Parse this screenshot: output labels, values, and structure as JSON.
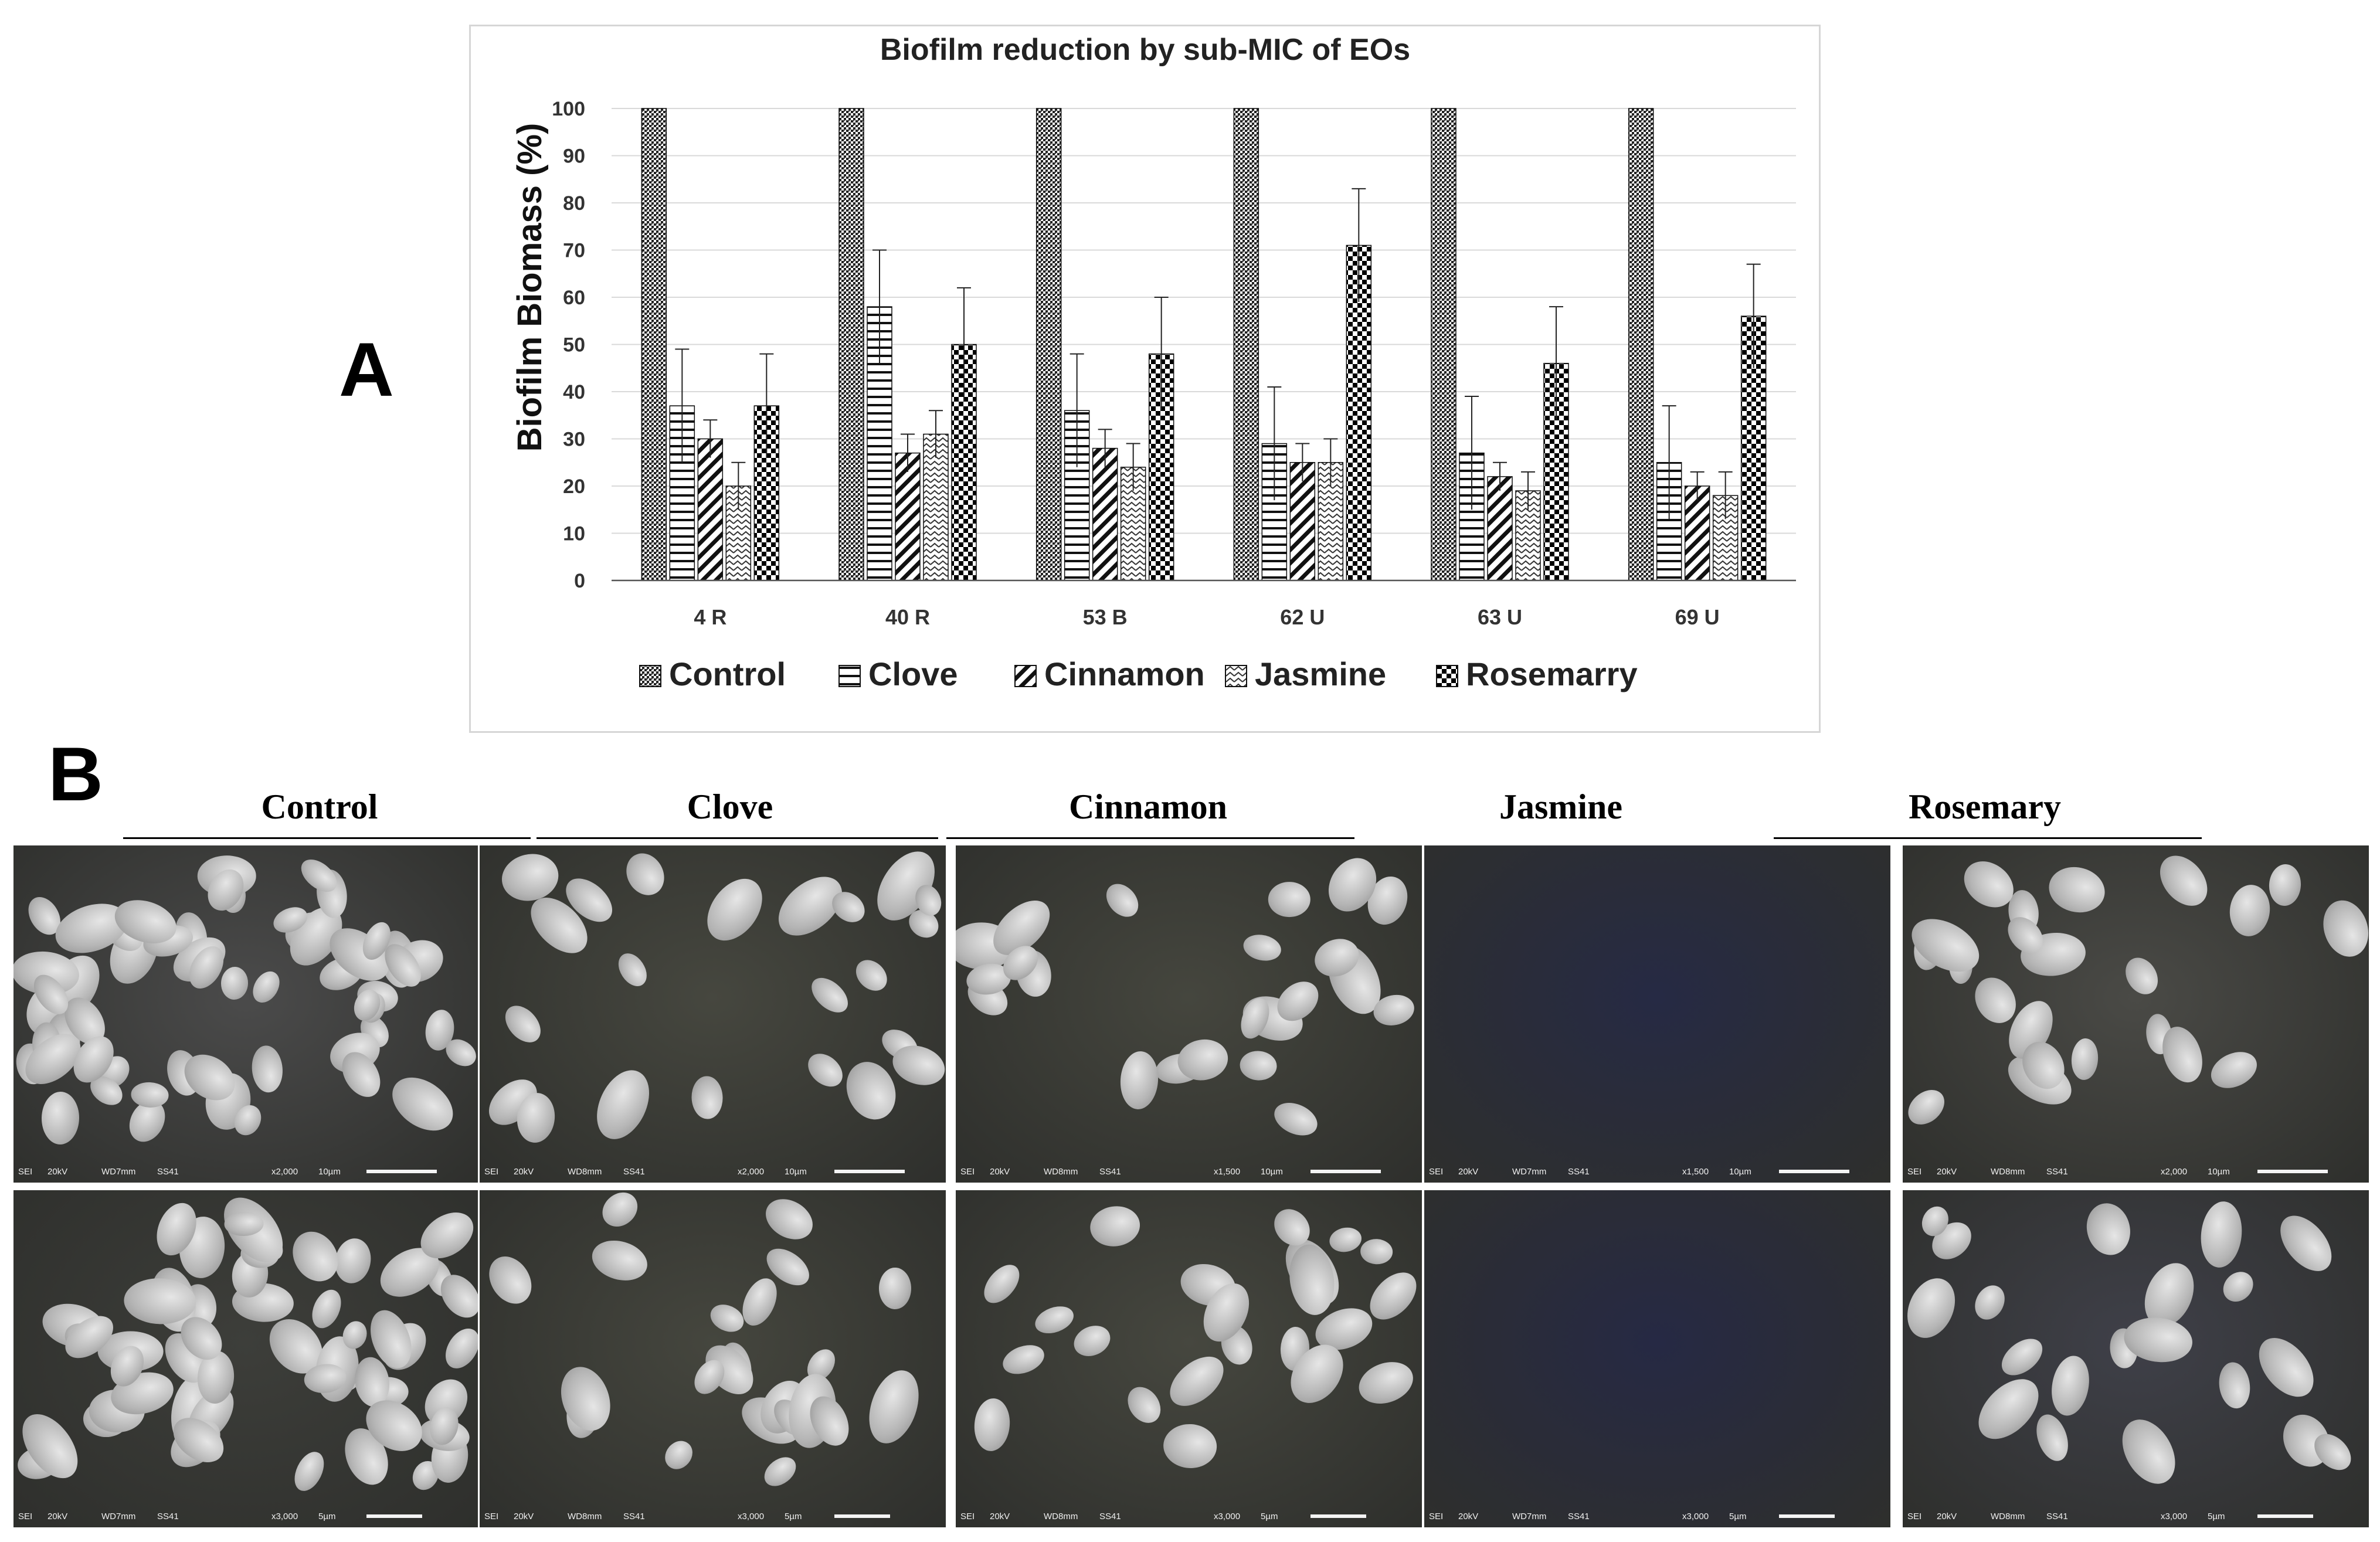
{
  "panel_a_label": "A",
  "panel_b_label": "B",
  "chart_data": {
    "type": "bar",
    "title": "Biofilm reduction by sub-MIC of EOs",
    "ylabel": "Biofilm Biomass (%)",
    "xlabel": "",
    "ylim": [
      0,
      100
    ],
    "yticks": [
      0,
      10,
      20,
      30,
      40,
      50,
      60,
      70,
      80,
      90,
      100
    ],
    "grid": true,
    "legend_position": "bottom",
    "categories": [
      "4 R",
      "40 R",
      "53 B",
      "62 U",
      "63 U",
      "69 U"
    ],
    "series": [
      {
        "name": "Control",
        "pattern": "dense-dots",
        "values": [
          100,
          100,
          100,
          100,
          100,
          100
        ],
        "errors": [
          0,
          0,
          0,
          0,
          0,
          0
        ]
      },
      {
        "name": "Clove",
        "pattern": "horizontal-lines",
        "values": [
          37,
          58,
          36,
          29,
          27,
          25
        ],
        "errors": [
          12,
          12,
          12,
          12,
          12,
          12
        ]
      },
      {
        "name": "Cinnamon",
        "pattern": "diagonal-lines",
        "values": [
          30,
          27,
          28,
          25,
          22,
          20
        ],
        "errors": [
          4,
          4,
          4,
          4,
          3,
          3
        ]
      },
      {
        "name": "Jasmine",
        "pattern": "zigzag",
        "values": [
          20,
          31,
          24,
          25,
          19,
          18
        ],
        "errors": [
          5,
          5,
          5,
          5,
          4,
          5
        ]
      },
      {
        "name": "Rosemarry",
        "pattern": "checkerboard",
        "values": [
          37,
          50,
          48,
          71,
          46,
          56
        ],
        "errors": [
          11,
          12,
          12,
          12,
          12,
          11
        ]
      }
    ]
  },
  "panel_b": {
    "columns": [
      "Control",
      "Clove",
      "Cinnamon",
      "Jasmine",
      "Rosemary"
    ],
    "micrographs": [
      [
        {
          "sei": "SEI",
          "kv": "20kV",
          "wd": "WD7mm",
          "ss": "SS41",
          "mag": "x2,000",
          "scale": "10µm",
          "tint": "#4b4b4b"
        },
        {
          "sei": "SEI",
          "kv": "20kV",
          "wd": "WD8mm",
          "ss": "SS41",
          "mag": "x2,000",
          "scale": "10µm",
          "tint": "#46473f"
        },
        {
          "sei": "SEI",
          "kv": "20kV",
          "wd": "WD8mm",
          "ss": "SS41",
          "mag": "x1,500",
          "scale": "10µm",
          "tint": "#45463e"
        },
        {
          "sei": "SEI",
          "kv": "20kV",
          "wd": "WD7mm",
          "ss": "SS41",
          "mag": "x1,500",
          "scale": "10µm",
          "tint": "#262a44"
        },
        {
          "sei": "SEI",
          "kv": "20kV",
          "wd": "WD8mm",
          "ss": "SS41",
          "mag": "x2,000",
          "scale": "10µm",
          "tint": "#4a4a46"
        }
      ],
      [
        {
          "sei": "SEI",
          "kv": "20kV",
          "wd": "WD7mm",
          "ss": "SS41",
          "mag": "x3,000",
          "scale": "5µm",
          "tint": "#3d3e3a"
        },
        {
          "sei": "SEI",
          "kv": "20kV",
          "wd": "WD8mm",
          "ss": "SS41",
          "mag": "x3,000",
          "scale": "5µm",
          "tint": "#45463e"
        },
        {
          "sei": "SEI",
          "kv": "20kV",
          "wd": "WD8mm",
          "ss": "SS41",
          "mag": "x3,000",
          "scale": "5µm",
          "tint": "#46473f"
        },
        {
          "sei": "SEI",
          "kv": "20kV",
          "wd": "WD7mm",
          "ss": "SS41",
          "mag": "x3,000",
          "scale": "5µm",
          "tint": "#262944"
        },
        {
          "sei": "SEI",
          "kv": "20kV",
          "wd": "WD8mm",
          "ss": "SS41",
          "mag": "x3,000",
          "scale": "5µm",
          "tint": "#3f4049"
        }
      ]
    ]
  }
}
